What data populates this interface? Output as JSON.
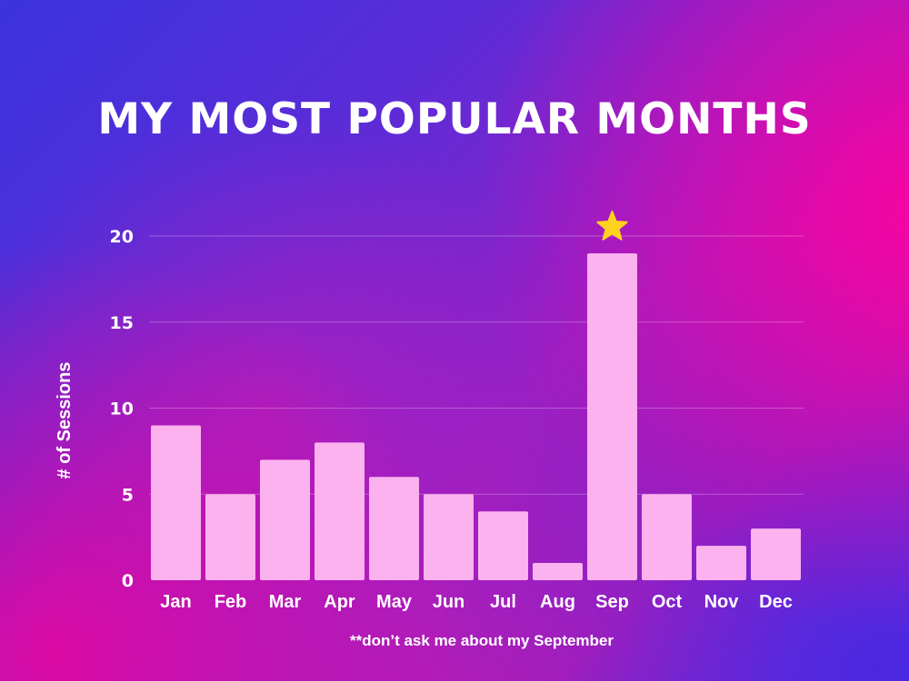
{
  "chart_data": {
    "type": "bar",
    "title": "MY MOST POPULAR MONTHS",
    "categories": [
      "Jan",
      "Feb",
      "Mar",
      "Apr",
      "May",
      "Jun",
      "Jul",
      "Aug",
      "Sep",
      "Oct",
      "Nov",
      "Dec"
    ],
    "values": [
      9,
      5,
      7,
      8,
      6,
      5,
      4,
      1,
      19,
      5,
      2,
      3
    ],
    "xlabel": "",
    "ylabel": "# of Sessions",
    "ylim": [
      0,
      20
    ],
    "yticks": [
      0,
      5,
      10,
      15,
      20
    ],
    "grid": true,
    "annotation": "**don’t ask me about my September",
    "highlight": {
      "category": "Sep",
      "marker": "star-icon"
    },
    "colors": {
      "bar": "#fbb2ee",
      "star": "#ffd21f",
      "text": "#ffffff"
    }
  }
}
